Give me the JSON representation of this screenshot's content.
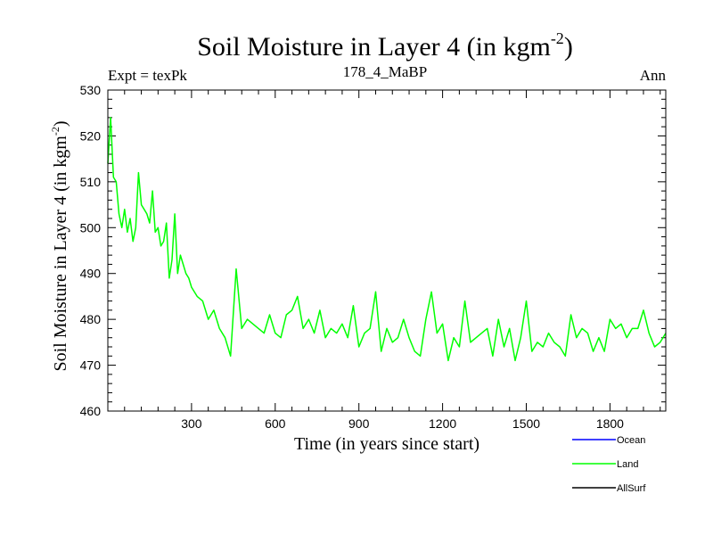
{
  "chart_data": {
    "type": "line",
    "title": "Soil Moisture in Layer 4 (in kgm",
    "title_superscript": "-2",
    "title_suffix": ")",
    "subtitle_left": "Expt = texPk",
    "subtitle_center": "178_4_MaBP",
    "subtitle_right": "Ann",
    "xlabel": "Time (in years since start)",
    "ylabel": "Soil Moisture in Layer 4 (in kgm",
    "ylabel_superscript": "-2",
    "ylabel_suffix": ")",
    "xlim": [
      0,
      2000
    ],
    "ylim": [
      460,
      530
    ],
    "x_ticks": [
      300,
      600,
      900,
      1200,
      1500,
      1800
    ],
    "y_ticks": [
      460,
      470,
      480,
      490,
      500,
      510,
      520,
      530
    ],
    "legend": [
      {
        "name": "Ocean",
        "color": "#0000ff"
      },
      {
        "name": "Land",
        "color": "#00ff00"
      },
      {
        "name": "AllSurf",
        "color": "#000000"
      }
    ],
    "series": [
      {
        "name": "Land",
        "color": "#00ff00",
        "x": [
          0,
          10,
          20,
          30,
          40,
          50,
          60,
          70,
          80,
          90,
          100,
          110,
          120,
          130,
          140,
          150,
          160,
          170,
          180,
          190,
          200,
          210,
          220,
          230,
          240,
          250,
          260,
          270,
          280,
          290,
          300,
          320,
          340,
          360,
          380,
          400,
          420,
          440,
          460,
          480,
          500,
          520,
          540,
          560,
          580,
          600,
          620,
          640,
          660,
          680,
          700,
          720,
          740,
          760,
          780,
          800,
          820,
          840,
          860,
          880,
          900,
          920,
          940,
          960,
          980,
          1000,
          1020,
          1040,
          1060,
          1080,
          1100,
          1120,
          1140,
          1160,
          1180,
          1200,
          1220,
          1240,
          1260,
          1280,
          1300,
          1320,
          1340,
          1360,
          1380,
          1400,
          1420,
          1440,
          1460,
          1480,
          1500,
          1520,
          1540,
          1560,
          1580,
          1600,
          1620,
          1640,
          1660,
          1680,
          1700,
          1720,
          1740,
          1760,
          1780,
          1800,
          1820,
          1840,
          1860,
          1880,
          1900,
          1920,
          1940,
          1960,
          1980,
          2000
        ],
        "values": [
          514,
          524,
          511,
          510,
          503,
          500,
          504,
          499,
          502,
          497,
          500,
          512,
          505,
          504,
          503,
          501,
          508,
          499,
          500,
          496,
          497,
          501,
          489,
          493,
          503,
          490,
          494,
          492,
          490,
          489,
          487,
          485,
          484,
          480,
          482,
          478,
          476,
          472,
          491,
          478,
          480,
          479,
          478,
          477,
          481,
          477,
          476,
          481,
          482,
          485,
          478,
          480,
          477,
          482,
          476,
          478,
          477,
          479,
          476,
          483,
          474,
          477,
          478,
          486,
          473,
          478,
          475,
          476,
          480,
          476,
          473,
          472,
          480,
          486,
          477,
          479,
          471,
          476,
          474,
          484,
          475,
          476,
          477,
          478,
          472,
          480,
          474,
          478,
          471,
          476,
          484,
          473,
          475,
          474,
          477,
          475,
          474,
          472,
          481,
          476,
          478,
          477,
          473,
          476,
          473,
          480,
          478,
          479,
          476,
          478,
          478,
          482,
          477,
          474,
          475,
          477
        ]
      }
    ]
  }
}
